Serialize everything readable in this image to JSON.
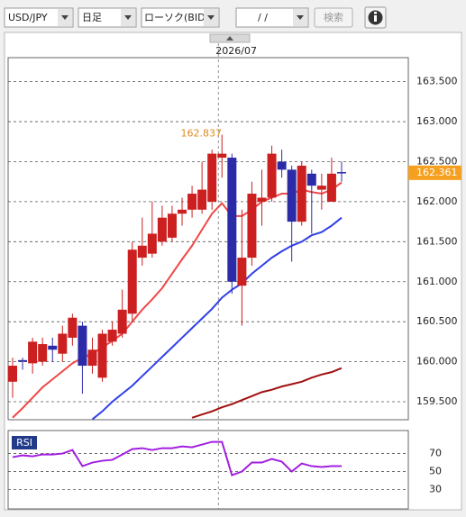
{
  "toolbar": {
    "symbol": "USD/JPY",
    "period": "日足",
    "chart_style": "ローソク(BID)",
    "date": "/   /",
    "search": "検索"
  },
  "chart_data": [
    {
      "type": "candlestick",
      "categories": [
        null,
        null,
        null,
        null,
        null,
        null,
        null,
        null,
        null,
        null,
        null,
        null,
        null,
        null,
        null,
        null,
        null,
        null,
        null,
        null,
        null,
        "2026/07",
        null,
        null,
        null,
        null,
        null,
        null,
        null,
        null,
        null,
        null,
        null,
        null
      ],
      "open": [
        159.75,
        160.02,
        159.98,
        160.0,
        160.2,
        160.1,
        160.3,
        160.45,
        159.95,
        159.8,
        160.25,
        160.35,
        160.6,
        161.3,
        161.35,
        161.5,
        161.55,
        161.85,
        161.9,
        161.9,
        162.0,
        162.55,
        162.55,
        160.95,
        161.3,
        162.0,
        162.05,
        162.5,
        162.4,
        161.75,
        162.35,
        162.15,
        162.0,
        162.37
      ],
      "high": [
        160.05,
        160.05,
        160.3,
        160.3,
        160.3,
        160.45,
        160.6,
        160.5,
        160.3,
        160.4,
        160.5,
        160.9,
        161.5,
        161.8,
        162.0,
        161.95,
        161.95,
        162.05,
        162.2,
        162.5,
        162.65,
        162.837,
        162.6,
        161.9,
        162.25,
        162.4,
        162.7,
        162.65,
        162.45,
        162.5,
        162.4,
        162.35,
        162.55,
        162.5
      ],
      "low": [
        159.55,
        159.9,
        159.85,
        159.95,
        160.0,
        160.0,
        160.2,
        159.6,
        159.85,
        159.75,
        160.2,
        160.3,
        160.5,
        161.2,
        161.3,
        161.45,
        161.5,
        161.7,
        161.8,
        161.85,
        161.9,
        162.3,
        160.85,
        160.45,
        161.2,
        161.7,
        162.0,
        162.3,
        161.25,
        161.7,
        161.6,
        161.9,
        162.0,
        162.25
      ],
      "close": [
        159.95,
        160.0,
        160.25,
        160.22,
        160.15,
        160.35,
        160.55,
        159.95,
        160.15,
        160.35,
        160.4,
        160.65,
        161.4,
        161.45,
        161.6,
        161.8,
        161.85,
        161.9,
        162.1,
        162.15,
        162.6,
        162.6,
        161.0,
        161.3,
        162.1,
        162.05,
        162.6,
        162.4,
        161.75,
        162.45,
        162.2,
        162.2,
        162.35,
        162.361
      ],
      "up_color": "#cc1f1f",
      "down_color": "#2b2ba8",
      "series": [
        {
          "color": "#f04848",
          "values": [
            159.3,
            159.42,
            159.55,
            159.68,
            159.78,
            159.88,
            159.98,
            160.05,
            160.1,
            160.18,
            160.26,
            160.35,
            160.5,
            160.65,
            160.78,
            160.92,
            161.1,
            161.28,
            161.45,
            161.65,
            161.85,
            161.98,
            161.82,
            161.82,
            161.9,
            162.0,
            162.05,
            162.1,
            162.1,
            162.15,
            162.12,
            162.1,
            162.15,
            162.24
          ]
        },
        {
          "color": "#3040e8",
          "values": [
            null,
            null,
            null,
            null,
            null,
            null,
            null,
            null,
            159.28,
            159.38,
            159.5,
            159.6,
            159.7,
            159.82,
            159.94,
            160.06,
            160.18,
            160.3,
            160.42,
            160.54,
            160.66,
            160.8,
            160.9,
            160.98,
            161.1,
            161.2,
            161.3,
            161.38,
            161.45,
            161.5,
            161.58,
            161.62,
            161.7,
            161.8
          ]
        },
        {
          "color": "#a01010",
          "values": [
            null,
            null,
            null,
            null,
            null,
            null,
            null,
            null,
            null,
            null,
            null,
            null,
            null,
            null,
            null,
            null,
            null,
            null,
            159.3,
            159.34,
            159.38,
            159.43,
            159.47,
            159.52,
            159.57,
            159.62,
            159.65,
            159.69,
            159.72,
            159.75,
            159.8,
            159.84,
            159.87,
            159.92
          ]
        }
      ],
      "ylim": [
        159.275,
        163.8
      ],
      "yticks": [
        {
          "value": 163.5,
          "label": "163.500"
        },
        {
          "value": 163.0,
          "label": "163.000"
        },
        {
          "value": 162.5,
          "label": "162.500"
        },
        {
          "value": 162.0,
          "label": "162.000"
        },
        {
          "value": 161.5,
          "label": "161.500"
        },
        {
          "value": 161.0,
          "label": "161.000"
        },
        {
          "value": 160.5,
          "label": "160.500"
        },
        {
          "value": 160.0,
          "label": "160.000"
        },
        {
          "value": 159.5,
          "label": "159.500"
        }
      ],
      "grid": true,
      "high_label": 162.837,
      "last_price": 162.361,
      "last_price_color": "#f5a020"
    },
    {
      "type": "line",
      "title": "RSI",
      "color": "#a21fe0",
      "values": [
        66,
        68,
        67,
        69,
        69,
        70,
        74,
        56,
        60,
        62,
        63,
        69,
        75,
        76,
        74,
        76,
        76,
        78,
        77,
        80,
        83,
        83,
        46,
        50,
        60,
        60,
        64,
        61,
        50,
        59,
        56,
        55,
        56,
        56
      ],
      "ylim": [
        8.5,
        95.6
      ],
      "yticks": [
        70,
        50,
        30
      ],
      "grid": true
    }
  ]
}
